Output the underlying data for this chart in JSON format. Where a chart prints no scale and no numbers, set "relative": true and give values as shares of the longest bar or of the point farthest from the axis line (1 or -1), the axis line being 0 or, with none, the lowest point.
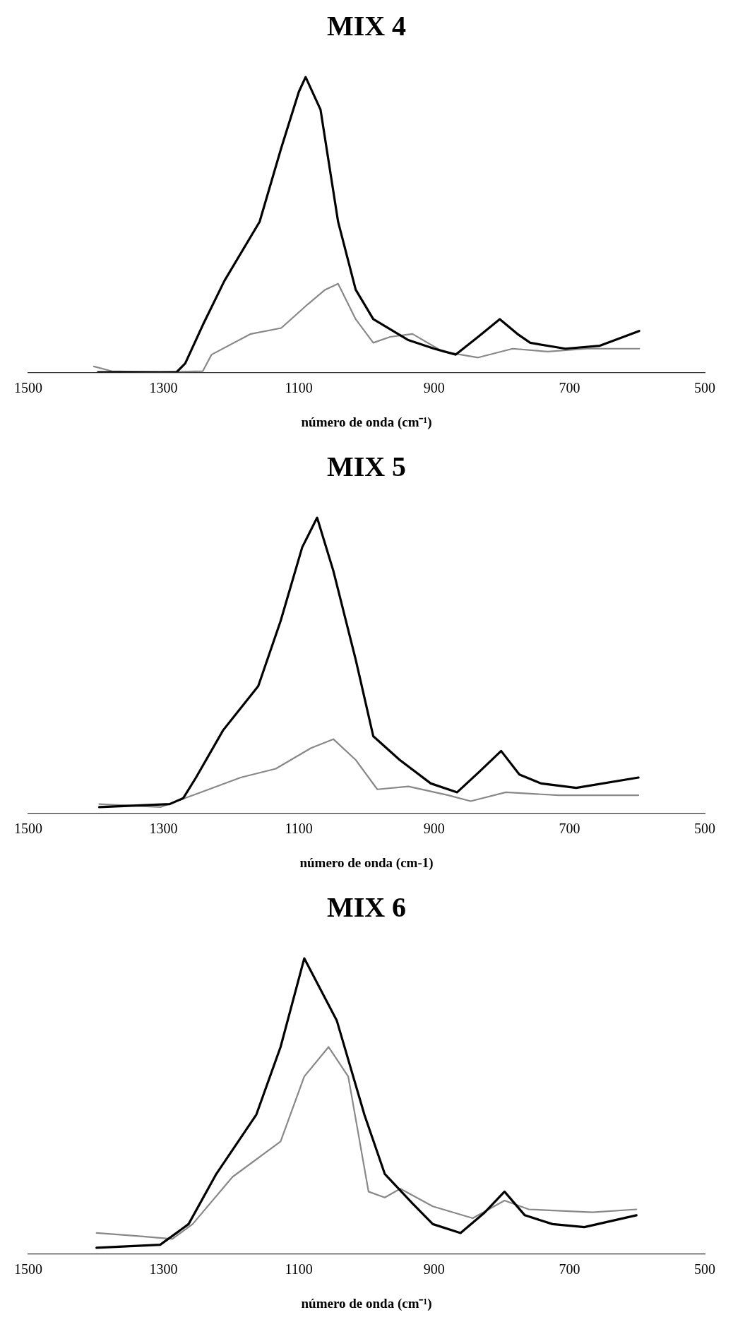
{
  "chart_data": [
    {
      "type": "line",
      "title": "MIX 4",
      "xlabel": "número de onda (cm⁻¹)",
      "xlim": [
        1500,
        500
      ],
      "xticks": [
        1500,
        1300,
        1100,
        900,
        700,
        500
      ],
      "relative": true,
      "series": [
        {
          "color": "#000000",
          "x": [
            1397,
            1326,
            1281,
            1268,
            1242,
            1210,
            1158,
            1126,
            1100,
            1090,
            1068,
            1042,
            1016,
            990,
            939,
            900,
            868,
            835,
            803,
            777,
            758,
            706,
            655,
            597
          ],
          "values": [
            0,
            0,
            0,
            0.03,
            0.16,
            0.31,
            0.51,
            0.76,
            0.95,
            1,
            0.89,
            0.51,
            0.28,
            0.18,
            0.11,
            0.08,
            0.06,
            0.12,
            0.18,
            0.13,
            0.1,
            0.08,
            0.09,
            0.14
          ]
        },
        {
          "color": "#888888",
          "x": [
            1403,
            1377,
            1306,
            1242,
            1229,
            1171,
            1126,
            1087,
            1061,
            1042,
            1016,
            990,
            965,
            932,
            887,
            835,
            784,
            732,
            674,
            597
          ],
          "values": [
            0.02,
            0.004,
            0,
            0.004,
            0.06,
            0.13,
            0.15,
            0.23,
            0.28,
            0.3,
            0.18,
            0.1,
            0.12,
            0.13,
            0.07,
            0.05,
            0.08,
            0.07,
            0.08,
            0.08
          ]
        }
      ]
    },
    {
      "type": "line",
      "title": "MIX 5",
      "xlabel": "número de onda (cm-1)",
      "xlim": [
        1500,
        500
      ],
      "xticks": [
        1500,
        1300,
        1100,
        900,
        700,
        500
      ],
      "relative": true,
      "series": [
        {
          "color": "#000000",
          "x": [
            1395,
            1291,
            1271,
            1252,
            1212,
            1160,
            1127,
            1095,
            1073,
            1049,
            1016,
            990,
            951,
            905,
            866,
            833,
            801,
            774,
            742,
            690,
            598
          ],
          "values": [
            0.02,
            0.03,
            0.05,
            0.12,
            0.28,
            0.43,
            0.65,
            0.9,
            1,
            0.82,
            0.52,
            0.26,
            0.18,
            0.1,
            0.07,
            0.14,
            0.21,
            0.13,
            0.1,
            0.085,
            0.12
          ]
        },
        {
          "color": "#888888",
          "x": [
            1395,
            1304,
            1245,
            1186,
            1134,
            1082,
            1049,
            1016,
            984,
            938,
            879,
            846,
            794,
            716,
            664,
            598
          ],
          "values": [
            0.03,
            0.02,
            0.07,
            0.12,
            0.15,
            0.22,
            0.25,
            0.18,
            0.08,
            0.09,
            0.06,
            0.04,
            0.07,
            0.06,
            0.06,
            0.06
          ]
        }
      ]
    },
    {
      "type": "line",
      "title": "MIX 6",
      "xlabel": "número de onda (cm⁻¹)",
      "xlim": [
        1500,
        500
      ],
      "xticks": [
        1500,
        1300,
        1100,
        900,
        700,
        500
      ],
      "relative": true,
      "series": [
        {
          "color": "#000000",
          "x": [
            1399,
            1305,
            1263,
            1222,
            1163,
            1127,
            1092,
            1044,
            1003,
            973,
            932,
            902,
            861,
            825,
            796,
            766,
            725,
            678,
            601
          ],
          "values": [
            0.02,
            0.03,
            0.1,
            0.27,
            0.47,
            0.7,
            1,
            0.79,
            0.47,
            0.27,
            0.17,
            0.1,
            0.07,
            0.14,
            0.21,
            0.13,
            0.1,
            0.09,
            0.13
          ]
        },
        {
          "color": "#888888",
          "x": [
            1399,
            1340,
            1287,
            1257,
            1198,
            1127,
            1092,
            1056,
            1027,
            997,
            973,
            950,
            902,
            843,
            796,
            760,
            666,
            601
          ],
          "values": [
            0.07,
            0.06,
            0.05,
            0.1,
            0.26,
            0.38,
            0.6,
            0.7,
            0.6,
            0.21,
            0.19,
            0.22,
            0.16,
            0.12,
            0.18,
            0.15,
            0.14,
            0.15
          ]
        }
      ]
    }
  ]
}
